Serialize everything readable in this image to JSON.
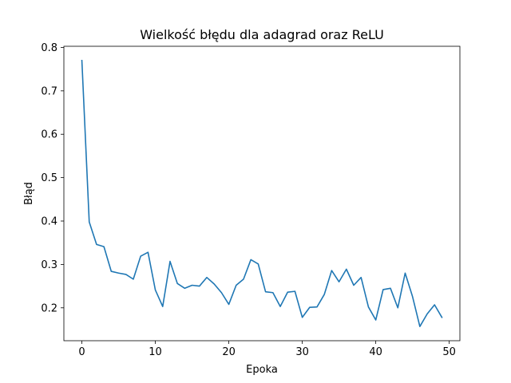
{
  "chart_data": {
    "type": "line",
    "title": "Wielkość błędu dla adagrad oraz ReLU",
    "xlabel": "Epoka",
    "ylabel": "Błąd",
    "xlim": [
      -2.45,
      51.45
    ],
    "ylim": [
      0.1242,
      0.8027
    ],
    "xticks": [
      0,
      10,
      20,
      30,
      40,
      50
    ],
    "yticks": [
      0.2,
      0.3,
      0.4,
      0.5,
      0.6,
      0.7,
      0.8
    ],
    "xtick_labels": [
      "0",
      "10",
      "20",
      "30",
      "40",
      "50"
    ],
    "ytick_labels": [
      "0.2",
      "0.3",
      "0.4",
      "0.5",
      "0.6",
      "0.7",
      "0.8"
    ],
    "grid": false,
    "legend": "none",
    "series": [
      {
        "color": "#1f77b4",
        "x": [
          0,
          1,
          2,
          3,
          4,
          5,
          6,
          7,
          8,
          9,
          10,
          11,
          12,
          13,
          14,
          15,
          16,
          17,
          18,
          19,
          20,
          21,
          22,
          23,
          24,
          25,
          26,
          27,
          28,
          29,
          30,
          31,
          32,
          33,
          34,
          35,
          36,
          37,
          38,
          39,
          40,
          41,
          42,
          43,
          44,
          45,
          46,
          47,
          48,
          49
        ],
        "y": [
          0.77,
          0.398,
          0.346,
          0.341,
          0.284,
          0.28,
          0.277,
          0.266,
          0.319,
          0.328,
          0.241,
          0.203,
          0.307,
          0.256,
          0.245,
          0.252,
          0.25,
          0.27,
          0.255,
          0.235,
          0.208,
          0.252,
          0.266,
          0.311,
          0.301,
          0.237,
          0.235,
          0.203,
          0.236,
          0.238,
          0.178,
          0.201,
          0.202,
          0.231,
          0.286,
          0.26,
          0.289,
          0.252,
          0.27,
          0.202,
          0.172,
          0.242,
          0.245,
          0.2,
          0.28,
          0.226,
          0.157,
          0.186,
          0.207,
          0.178
        ]
      }
    ]
  }
}
